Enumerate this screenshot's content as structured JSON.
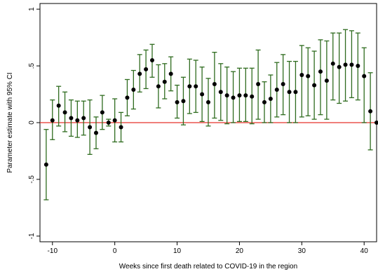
{
  "chart_data": {
    "type": "scatter",
    "title": "",
    "xlabel": "Weeks since first death related to COVID-19 in the region",
    "ylabel": "Parameter estimate with 95% CI",
    "xlim": [
      -12,
      42
    ],
    "ylim": [
      -1.05,
      1.05
    ],
    "x_ticks": [
      -10,
      0,
      10,
      20,
      30,
      40
    ],
    "y_ticks": [
      -1,
      -0.5,
      0,
      0.5,
      1
    ],
    "x_tick_labels": [
      "-10",
      "0",
      "10",
      "20",
      "30",
      "40"
    ],
    "y_tick_labels": [
      "-1",
      "-.5",
      "0",
      ".5",
      "1"
    ],
    "reference_line": {
      "y": 0,
      "color": "#e8332a"
    },
    "point_color": "#000000",
    "ci_color": "#2e6b1e",
    "grid": false,
    "legend": "none",
    "series": [
      {
        "x": [
          -11,
          -10,
          -9,
          -8,
          -7,
          -6,
          -5,
          -4,
          -3,
          -2,
          -1,
          0,
          1,
          2,
          3,
          4,
          5,
          6,
          7,
          8,
          9,
          10,
          11,
          12,
          13,
          14,
          15,
          16,
          17,
          18,
          19,
          20,
          21,
          22,
          23,
          24,
          25,
          26,
          27,
          28,
          29,
          30,
          31,
          32,
          33,
          34,
          35,
          36,
          37,
          38,
          39,
          40,
          41,
          42
        ],
        "estimate": [
          -0.37,
          0.02,
          0.15,
          0.09,
          0.04,
          0.02,
          0.04,
          -0.04,
          -0.09,
          0.09,
          0.0,
          0.02,
          -0.04,
          0.22,
          0.29,
          0.43,
          0.47,
          0.55,
          0.32,
          0.36,
          0.43,
          0.18,
          0.19,
          0.32,
          0.32,
          0.25,
          0.18,
          0.34,
          0.27,
          0.24,
          0.22,
          0.24,
          0.24,
          0.23,
          0.34,
          0.18,
          0.21,
          0.29,
          0.34,
          0.27,
          0.27,
          0.42,
          0.41,
          0.33,
          0.45,
          0.37,
          0.52,
          0.49,
          0.51,
          0.51,
          0.5,
          0.41,
          0.1,
          0.0
        ],
        "ci_low": [
          -0.68,
          -0.15,
          -0.03,
          -0.08,
          -0.12,
          -0.13,
          -0.11,
          -0.28,
          -0.23,
          -0.06,
          -0.03,
          -0.17,
          -0.17,
          0.06,
          0.12,
          0.27,
          0.3,
          0.4,
          0.13,
          0.21,
          0.28,
          0.04,
          -0.02,
          0.08,
          0.09,
          0.01,
          -0.03,
          0.04,
          0.02,
          -0.01,
          0.0,
          0.01,
          0.01,
          -0.01,
          0.03,
          0.0,
          0.0,
          0.05,
          0.07,
          0.0,
          0.0,
          0.05,
          0.06,
          0.03,
          0.07,
          0.03,
          0.2,
          0.17,
          0.19,
          0.22,
          0.2,
          0.0,
          -0.24,
          0.0
        ],
        "ci_high": [
          -0.06,
          0.2,
          0.32,
          0.27,
          0.2,
          0.19,
          0.19,
          0.2,
          0.05,
          0.24,
          0.03,
          0.21,
          0.09,
          0.38,
          0.46,
          0.6,
          0.64,
          0.69,
          0.51,
          0.52,
          0.58,
          0.33,
          0.4,
          0.56,
          0.55,
          0.49,
          0.39,
          0.62,
          0.52,
          0.49,
          0.45,
          0.48,
          0.48,
          0.48,
          0.64,
          0.36,
          0.42,
          0.53,
          0.6,
          0.54,
          0.54,
          0.68,
          0.66,
          0.63,
          0.73,
          0.72,
          0.79,
          0.79,
          0.82,
          0.81,
          0.79,
          0.66,
          0.44,
          0.0
        ]
      }
    ]
  }
}
